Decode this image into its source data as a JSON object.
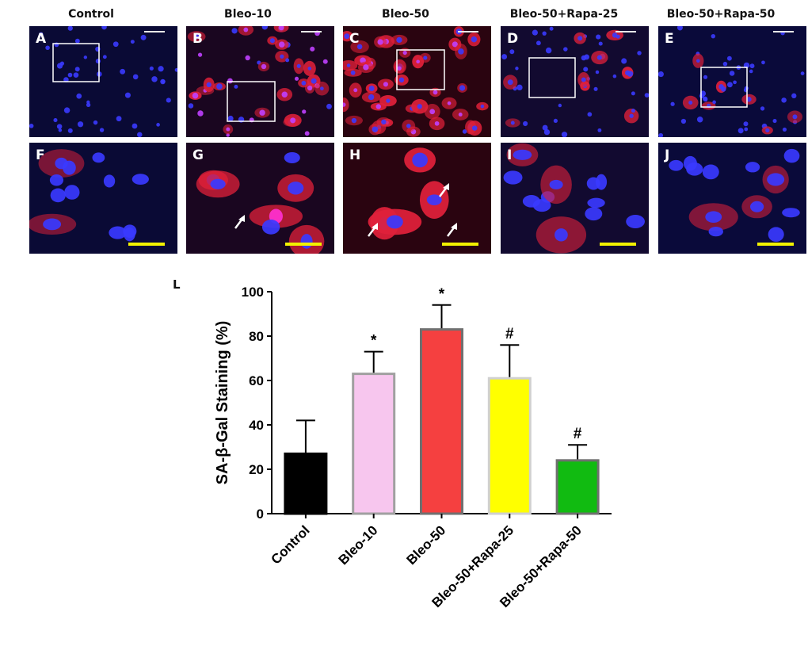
{
  "columns": [
    {
      "title": "Control",
      "top_label": "A",
      "bottom_label": "F"
    },
    {
      "title": "Bleo-10",
      "top_label": "B",
      "bottom_label": "G"
    },
    {
      "title": "Bleo-50",
      "top_label": "C",
      "bottom_label": "H"
    },
    {
      "title": "Bleo-50+Rapa-25",
      "top_label": "D",
      "bottom_label": "I"
    },
    {
      "title": "Bleo-50+Rapa-50",
      "top_label": "E",
      "bottom_label": "J"
    }
  ],
  "figure_label": "L",
  "colors": {
    "nuclei": "#3b3bff",
    "sa_gal": "#ff2a3a",
    "scale_bar": "#f2f200"
  },
  "chart_data": {
    "type": "bar",
    "categories": [
      "Control",
      "Bleo-10",
      "Bleo-50",
      "Bleo-50+Rapa-25",
      "Bleo-50+Rapa-50"
    ],
    "values": [
      27,
      63,
      83,
      61,
      24
    ],
    "errors": [
      15,
      10,
      11,
      15,
      7
    ],
    "annotations": [
      "",
      "*",
      "*",
      "#",
      "#"
    ],
    "colors": [
      "#000000",
      "#f7c6ee",
      "#f54040",
      "#ffff00",
      "#11bb11"
    ],
    "edge_colors": [
      "#000000",
      "#a0a0a0",
      "#707070",
      "#d0d0d0",
      "#707070"
    ],
    "xlabel": "",
    "ylabel": "SA-β-Gal Staining (%)",
    "ylim": [
      0,
      100
    ],
    "yticks": [
      0,
      20,
      40,
      60,
      80,
      100
    ]
  }
}
